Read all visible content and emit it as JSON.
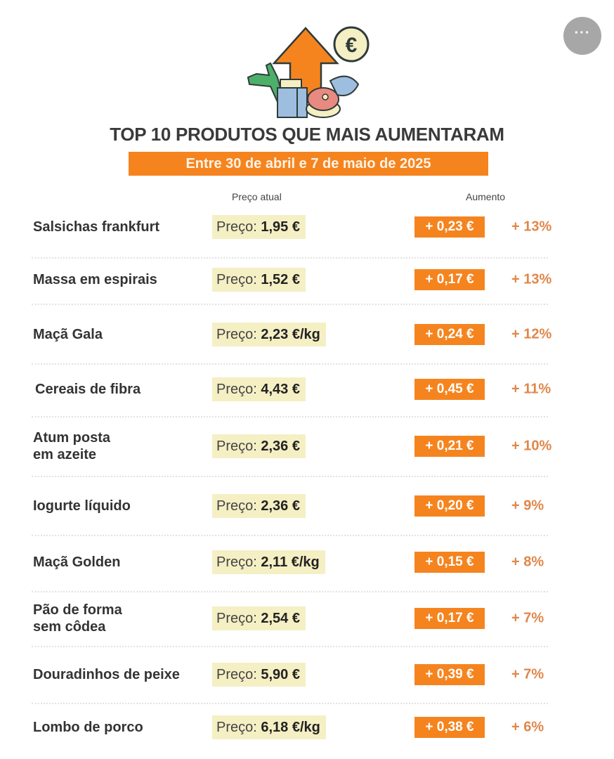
{
  "menu_button": {
    "icon": "more-dots-icon",
    "label": "···"
  },
  "illustration": {
    "icon": "price-increase-food-icon",
    "coin_label": "€"
  },
  "title": "TOP 10 PRODUTOS QUE MAIS AUMENTARAM",
  "subtitle": "Entre 30 de abril e 7 de maio de 2025",
  "columns": {
    "price": "Preço atual",
    "increase": "Aumento"
  },
  "price_prefix": "Preço:",
  "colors": {
    "accent": "#f5841f",
    "price_bg": "#f5efc4",
    "percent_text": "#e0874a"
  },
  "rows": [
    {
      "name": "Salsichas frankfurt",
      "price": "1,95 €",
      "increase": "+ 0,23 €",
      "percent": "+ 13%"
    },
    {
      "name": "Massa em espirais",
      "price": "1,52 €",
      "increase": "+ 0,17 €",
      "percent": "+ 13%"
    },
    {
      "name": "Maçã Gala",
      "price": "2,23 €/kg",
      "increase": "+ 0,24 €",
      "percent": "+ 12%"
    },
    {
      "name": "Cereais de fibra",
      "price": "4,43 €",
      "increase": "+ 0,45 €",
      "percent": "+ 11%"
    },
    {
      "name": "Atum posta\nem azeite",
      "price": "2,36 €",
      "increase": "+ 0,21 €",
      "percent": "+ 10%"
    },
    {
      "name": "Iogurte líquido",
      "price": "2,36 €",
      "increase": "+ 0,20 €",
      "percent": "+ 9%"
    },
    {
      "name": "Maçã Golden",
      "price": "2,11 €/kg",
      "increase": "+ 0,15 €",
      "percent": "+ 8%"
    },
    {
      "name": "Pão de forma\nsem côdea",
      "price": "2,54 €",
      "increase": "+ 0,17 €",
      "percent": "+ 7%"
    },
    {
      "name": "Douradinhos de peixe",
      "price": "5,90 €",
      "increase": "+ 0,39 €",
      "percent": "+ 7%"
    },
    {
      "name": "Lombo de porco",
      "price": "6,18 €/kg",
      "increase": "+ 0,38 €",
      "percent": "+ 6%"
    }
  ]
}
